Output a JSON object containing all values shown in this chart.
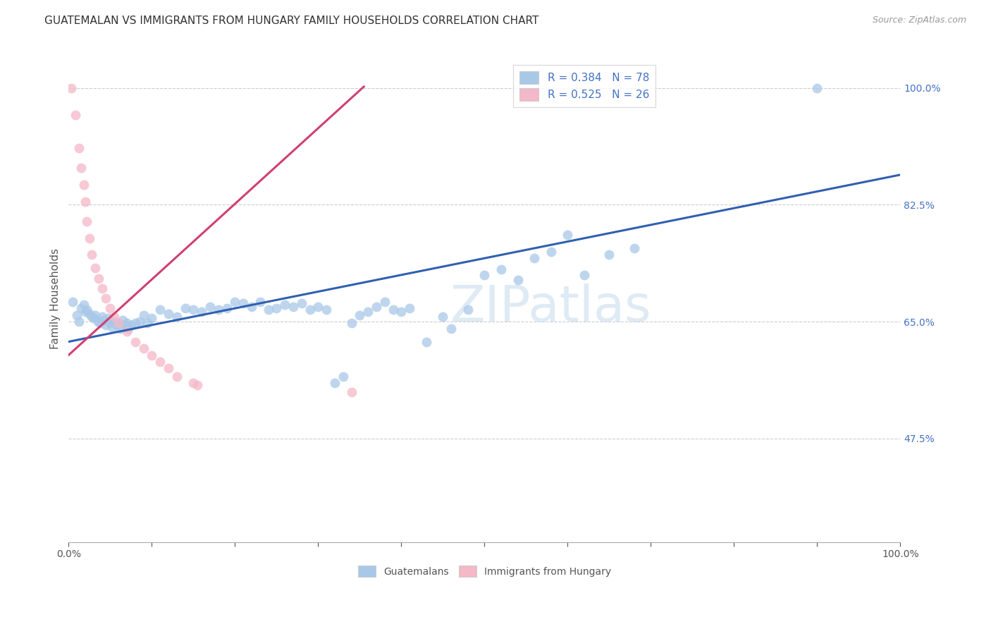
{
  "title": "GUATEMALAN VS IMMIGRANTS FROM HUNGARY FAMILY HOUSEHOLDS CORRELATION CHART",
  "source": "Source: ZipAtlas.com",
  "ylabel": "Family Households",
  "ylabel_right_ticks": [
    "100.0%",
    "82.5%",
    "65.0%",
    "47.5%"
  ],
  "ylabel_right_values": [
    1.0,
    0.825,
    0.65,
    0.475
  ],
  "watermark": "ZIPatlas",
  "legend_blue_r": "R = 0.384",
  "legend_blue_n": "N = 78",
  "legend_pink_r": "R = 0.525",
  "legend_pink_n": "N = 26",
  "blue_color": "#A8C8E8",
  "pink_color": "#F4B8C8",
  "blue_line_color": "#3060B0",
  "pink_line_color": "#D04070",
  "background_color": "#FFFFFF",
  "blue_scatter_x": [
    0.005,
    0.01,
    0.012,
    0.015,
    0.018,
    0.02,
    0.022,
    0.025,
    0.028,
    0.03,
    0.032,
    0.035,
    0.038,
    0.04,
    0.042,
    0.045,
    0.048,
    0.05,
    0.052,
    0.055,
    0.058,
    0.06,
    0.062,
    0.065,
    0.068,
    0.07,
    0.072,
    0.075,
    0.08,
    0.085,
    0.09,
    0.095,
    0.1,
    0.11,
    0.12,
    0.13,
    0.14,
    0.15,
    0.16,
    0.17,
    0.18,
    0.19,
    0.2,
    0.21,
    0.22,
    0.23,
    0.24,
    0.25,
    0.26,
    0.27,
    0.28,
    0.29,
    0.3,
    0.31,
    0.32,
    0.33,
    0.34,
    0.35,
    0.36,
    0.37,
    0.38,
    0.39,
    0.4,
    0.41,
    0.43,
    0.45,
    0.46,
    0.48,
    0.5,
    0.52,
    0.54,
    0.56,
    0.58,
    0.6,
    0.62,
    0.65,
    0.68,
    0.9
  ],
  "blue_scatter_y": [
    0.68,
    0.66,
    0.65,
    0.67,
    0.675,
    0.665,
    0.668,
    0.662,
    0.658,
    0.655,
    0.66,
    0.65,
    0.648,
    0.658,
    0.652,
    0.645,
    0.655,
    0.648,
    0.642,
    0.65,
    0.645,
    0.648,
    0.64,
    0.652,
    0.645,
    0.648,
    0.64,
    0.645,
    0.648,
    0.65,
    0.66,
    0.648,
    0.655,
    0.668,
    0.662,
    0.658,
    0.67,
    0.668,
    0.665,
    0.672,
    0.668,
    0.67,
    0.68,
    0.678,
    0.672,
    0.68,
    0.668,
    0.67,
    0.675,
    0.672,
    0.678,
    0.668,
    0.672,
    0.668,
    0.558,
    0.568,
    0.648,
    0.66,
    0.665,
    0.672,
    0.68,
    0.668,
    0.665,
    0.67,
    0.62,
    0.658,
    0.64,
    0.668,
    0.72,
    0.728,
    0.712,
    0.745,
    0.755,
    0.78,
    0.72,
    0.75,
    0.76,
    1.0
  ],
  "pink_scatter_x": [
    0.003,
    0.008,
    0.012,
    0.015,
    0.018,
    0.02,
    0.022,
    0.025,
    0.028,
    0.032,
    0.036,
    0.04,
    0.045,
    0.05,
    0.055,
    0.06,
    0.07,
    0.08,
    0.09,
    0.1,
    0.11,
    0.12,
    0.13,
    0.15,
    0.155,
    0.34
  ],
  "pink_scatter_y": [
    1.0,
    0.96,
    0.91,
    0.88,
    0.855,
    0.83,
    0.8,
    0.775,
    0.75,
    0.73,
    0.715,
    0.7,
    0.685,
    0.67,
    0.658,
    0.648,
    0.635,
    0.62,
    0.61,
    0.6,
    0.59,
    0.58,
    0.568,
    0.558,
    0.555,
    0.545
  ],
  "blue_line_x_start": 0.0,
  "blue_line_x_end": 1.0,
  "blue_line_y_start": 0.62,
  "blue_line_y_end": 0.87,
  "pink_line_x_start": 0.0,
  "pink_line_x_end": 0.355,
  "pink_line_y_start": 0.6,
  "pink_line_y_end": 1.002,
  "xmin": 0.0,
  "xmax": 1.0,
  "ymin": 0.32,
  "ymax": 1.05,
  "title_fontsize": 11,
  "source_fontsize": 9,
  "watermark_text": "ZIPatlas",
  "watermark_color": "#C8DCEE",
  "watermark_alpha": 0.6,
  "watermark_fontsize": 52
}
